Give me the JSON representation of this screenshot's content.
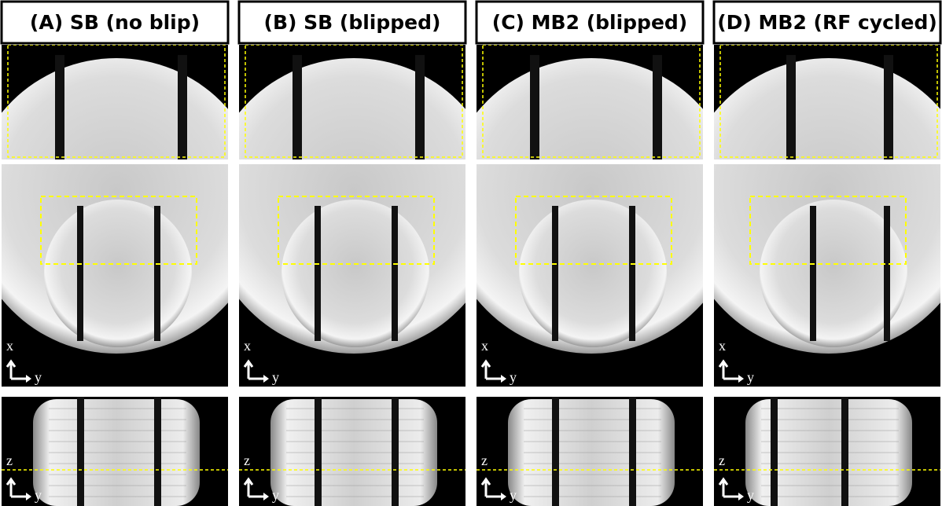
{
  "panels": [
    {
      "title": "(A)  SB (no blip)",
      "middle_axes": [
        "x",
        "y"
      ],
      "bottom_axes": [
        "z",
        "y"
      ]
    },
    {
      "title": "(B)  SB (blipped)",
      "middle_axes": [
        "x",
        "y"
      ],
      "bottom_axes": [
        "z",
        "y"
      ]
    },
    {
      "title": "(C)  MB2 (blipped)",
      "middle_axes": [
        "x",
        "y"
      ],
      "bottom_axes": [
        "z",
        "y"
      ]
    },
    {
      "title": "(D)  MB2 (RF cycled)",
      "middle_axes": [
        "x",
        "y"
      ],
      "bottom_axes": [
        "z",
        "y"
      ]
    }
  ]
}
